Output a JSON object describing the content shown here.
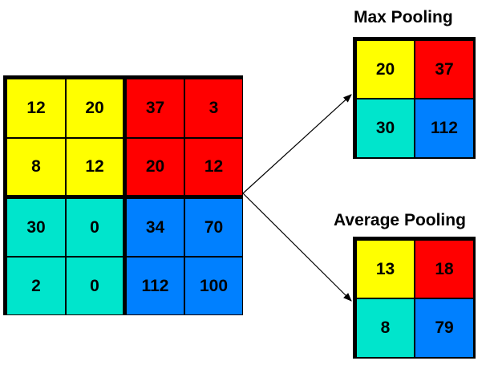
{
  "colors": {
    "yellow": "#ffff00",
    "red": "#ff0000",
    "cyan": "#00e5cc",
    "blue": "#0080ff"
  },
  "input": {
    "rows": [
      [
        "12",
        "20",
        "37",
        "3"
      ],
      [
        "8",
        "12",
        "20",
        "12"
      ],
      [
        "30",
        "0",
        "34",
        "70"
      ],
      [
        "2",
        "0",
        "112",
        "100"
      ]
    ]
  },
  "max_pooling": {
    "title": "Max Pooling",
    "rows": [
      [
        "20",
        "37"
      ],
      [
        "30",
        "112"
      ]
    ]
  },
  "average_pooling": {
    "title": "Average Pooling",
    "rows": [
      [
        "13",
        "18"
      ],
      [
        "8",
        "79"
      ]
    ]
  }
}
